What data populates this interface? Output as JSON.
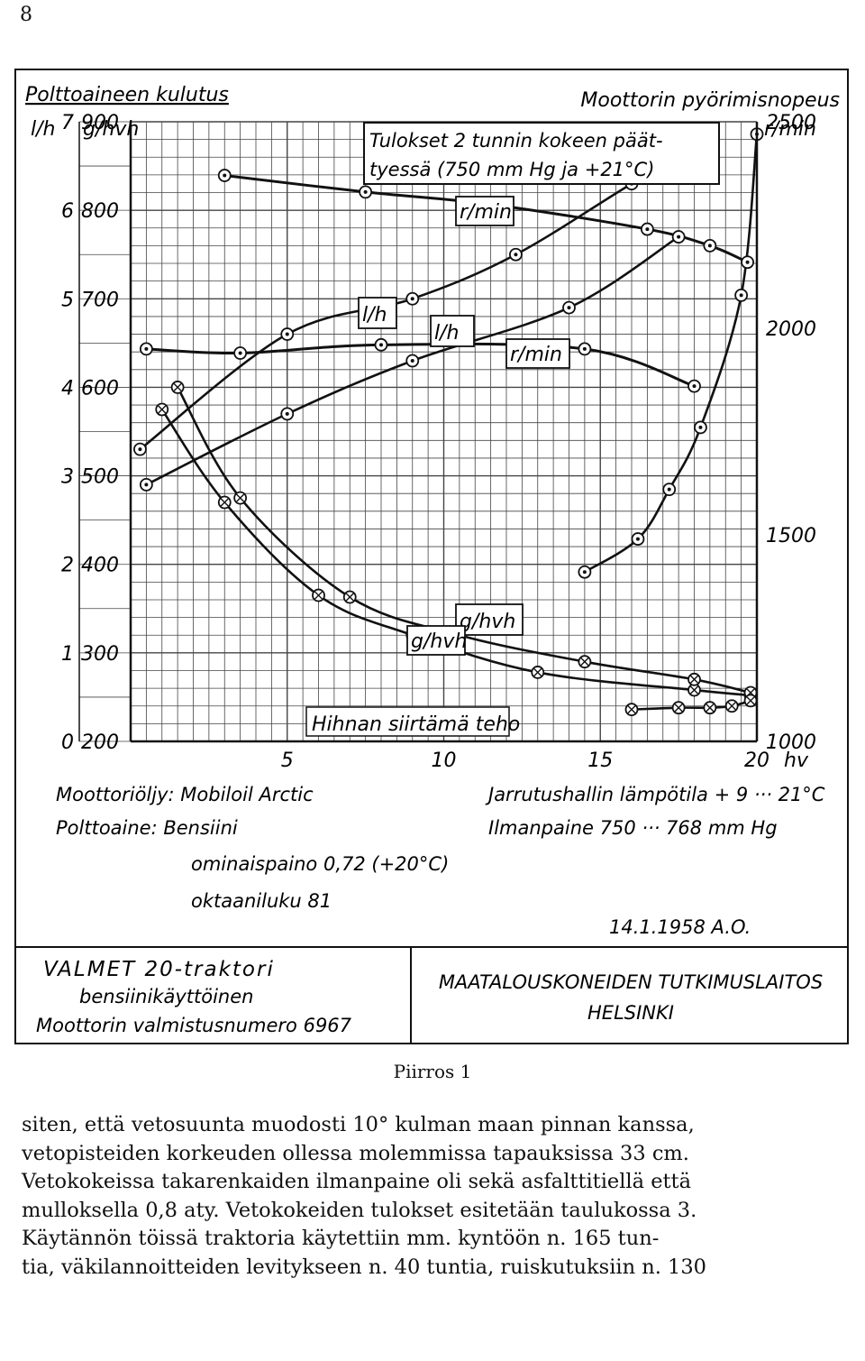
{
  "page_number": "8",
  "chart": {
    "left_title": "Polttoaineen kulutus",
    "right_title": "Moottorin pyörimisnopeus",
    "left_unit_outer": "l/h",
    "left_unit_inner": "g/hvh",
    "right_unit": "r/min",
    "note_line1": "Tulokset 2 tunnin kokeen päät-",
    "note_line2": "tyessä (750 mm Hg ja +21°C)",
    "x_label": "Hihnan siirtämä teho",
    "x_unit": "hv",
    "lh_ticks": [
      "7",
      "6",
      "5",
      "4",
      "3",
      "2",
      "1",
      "0"
    ],
    "ghvh_ticks": [
      "900",
      "800",
      "700",
      "600",
      "500",
      "400",
      "300",
      "200"
    ],
    "rmin_ticks": [
      "2500",
      "2000",
      "1500",
      "1000"
    ],
    "x_ticks": [
      "5",
      "10",
      "15",
      "20"
    ],
    "curve_labels": {
      "rmin_a": "r/min",
      "rmin_b": "r/min",
      "lh_a": "l/h",
      "lh_b": "l/h",
      "ghvh_a": "g/hvh",
      "ghvh_b": "g/hvh"
    }
  },
  "chart_data": {
    "type": "line",
    "title": "",
    "xlabel": "Hihnan siirtämä teho",
    "x_unit": "hv",
    "xlim": [
      0,
      20
    ],
    "y_axes": {
      "left_outer": {
        "label": "Polttoaineen kulutus",
        "unit": "l/h",
        "range": [
          0,
          7
        ]
      },
      "left_inner": {
        "unit": "g/hvh",
        "range": [
          200,
          900
        ]
      },
      "right": {
        "label": "Moottorin pyörimisnopeus",
        "unit": "r/min",
        "range": [
          1000,
          2500
        ]
      }
    },
    "series": [
      {
        "name": "r/min",
        "axis": "right",
        "marker": "dot",
        "x": [
          3,
          7.5,
          11.5,
          16.5,
          18.5,
          19.7
        ],
        "y": [
          2370,
          2330,
          2300,
          2240,
          2200,
          2160
        ]
      },
      {
        "name": "r/min",
        "axis": "right",
        "marker": "dot",
        "x": [
          0.5,
          3.5,
          8,
          14.5,
          18
        ],
        "y": [
          1950,
          1940,
          1960,
          1950,
          1860
        ]
      },
      {
        "name": "l/h",
        "axis": "left_outer",
        "marker": "dot",
        "x": [
          0.3,
          5,
          9,
          12.3,
          16,
          18.5
        ],
        "y": [
          3.3,
          4.6,
          5.0,
          5.5,
          6.3,
          6.8
        ]
      },
      {
        "name": "l/h",
        "axis": "left_outer",
        "marker": "dot",
        "x": [
          0.5,
          5,
          9,
          14,
          17.5
        ],
        "y": [
          2.9,
          3.7,
          4.3,
          4.9,
          5.7
        ]
      },
      {
        "name": "",
        "axis": "right",
        "marker": "dot",
        "x": [
          14.5,
          16.2,
          17.2,
          18.2,
          19.5,
          20
        ],
        "y": [
          1410,
          1490,
          1610,
          1760,
          2080,
          2470
        ]
      },
      {
        "name": "g/hvh",
        "axis": "left_inner",
        "marker": "cross",
        "x": [
          1,
          3,
          6,
          9,
          13,
          18,
          19.8
        ],
        "y": [
          575,
          470,
          365,
          320,
          278,
          258,
          252
        ]
      },
      {
        "name": "g/hvh",
        "axis": "left_inner",
        "marker": "cross",
        "x": [
          1.5,
          3.5,
          7,
          10.5,
          14.5,
          18,
          19.8
        ],
        "y": [
          600,
          475,
          363,
          320,
          290,
          270,
          255
        ]
      },
      {
        "name": "",
        "axis": "left_inner",
        "marker": "cross",
        "x": [
          16,
          17.5,
          18.5,
          19.2,
          19.8
        ],
        "y": [
          236,
          238,
          238,
          240,
          246
        ]
      }
    ]
  },
  "notes": {
    "oil": "Moottoriöljy: Mobiloil Arctic",
    "fuel": "Polttoaine: Bensiini",
    "density": "ominaispaino  0,72 (+20°C)",
    "octane": "oktaaniluku  81",
    "temp": "Jarrutushallin lämpötila + 9 ··· 21°C",
    "pressure": "Ilmanpaine 750 ··· 768 mm Hg",
    "date": "14.1.1958  A.O."
  },
  "title_block": {
    "left_line1": "VALMET 20-traktori",
    "left_line2": "bensiinikäyttöinen",
    "left_line3": "Moottorin valmistusnumero  6967",
    "right_line1": "MAATALOUSKONEIDEN TUTKIMUSLAITOS",
    "right_line2": "HELSINKI"
  },
  "caption": "Piirros 1",
  "body_lines": [
    "siten, että vetosuunta muodosti 10° kulman maan pinnan kanssa,",
    "vetopisteiden korkeuden ollessa molemmissa tapauksissa 33 cm.",
    "Vetokokeissa takarenkaiden ilmanpaine oli sekä asfalttitiellä että",
    "mulloksella 0,8 aty. Vetokokeiden tulokset esitetään taulukossa 3.",
    "Käytännön töissä traktoria käytettiin mm. kyntöön n. 165 tun-",
    "tia, väkilannoitteiden levitykseen n. 40 tuntia, ruiskutuksiin n. 130"
  ]
}
